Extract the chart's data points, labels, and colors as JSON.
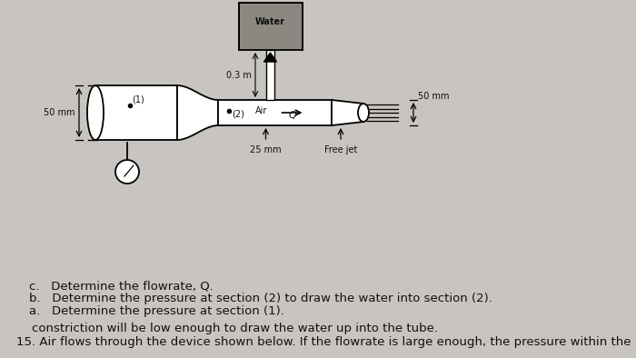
{
  "bg_color": "#c8c4bf",
  "paper_color": "#dedad5",
  "title_line1": "15. Air flows through the device shown below. If the flowrate is large enough, the pressure within the",
  "title_line2": "    constriction will be low enough to draw the water up into the tube.",
  "items": [
    "a.   Determine the pressure at section (1).",
    "b.   Determine the pressure at section (2) to draw the water into section (2).",
    "c.   Determine the flowrate, Q."
  ],
  "text_color": "#111111",
  "title_fontsize": 9.5,
  "item_fontsize": 9.5,
  "diagram_label_fontsize": 7.0
}
